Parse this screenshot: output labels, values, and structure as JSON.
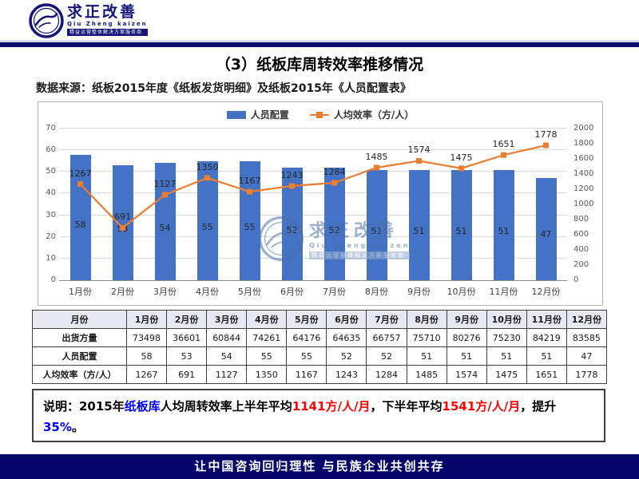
{
  "header": {
    "logo": {
      "brand": "求正改善",
      "brand_sub": "Qiu Zheng kaizen",
      "tagline": "精益运营整体解决方案服务商"
    }
  },
  "title": "（3）纸板库周转效率推移情况",
  "source_note": "数据来源：纸板2015年度《纸板发货明细》及纸板2015年《人员配置表》",
  "chart_data": {
    "type": "bar+line combo",
    "categories": [
      "1月份",
      "2月份",
      "3月份",
      "4月份",
      "5月份",
      "6月份",
      "7月份",
      "8月份",
      "9月份",
      "10月份",
      "11月份",
      "12月份"
    ],
    "series": [
      {
        "name": "人员配置",
        "type": "bar",
        "axis": "left",
        "color": "#4472C4",
        "values": [
          58,
          53,
          54,
          55,
          55,
          52,
          52,
          51,
          51,
          51,
          51,
          47
        ]
      },
      {
        "name": "人均效率（方/人）",
        "type": "line",
        "axis": "right",
        "color": "#ED7D31",
        "values": [
          1267,
          691,
          1127,
          1350,
          1167,
          1243,
          1284,
          1485,
          1574,
          1475,
          1651,
          1778
        ]
      }
    ],
    "left_axis": {
      "min": 0,
      "max": 70,
      "step": 10
    },
    "right_axis": {
      "min": 0,
      "max": 2000,
      "step": 200
    },
    "legend_position": "top",
    "grid": true,
    "data_labels": true
  },
  "watermark": {
    "brand": "求正改善",
    "brand_sub": "Qiu Zheng kaizen",
    "tagline": "精益运营整体解决方案服务商"
  },
  "table": {
    "header_row": [
      "月份",
      "1月份",
      "2月份",
      "3月份",
      "4月份",
      "5月份",
      "6月份",
      "7月份",
      "8月份",
      "9月份",
      "10月份",
      "11月份",
      "12月份"
    ],
    "rows": [
      {
        "label": "出货方量",
        "values": [
          "73498",
          "36601",
          "60844",
          "74261",
          "64176",
          "64635",
          "66757",
          "75710",
          "80276",
          "75230",
          "84219",
          "83585"
        ]
      },
      {
        "label": "人员配置",
        "values": [
          "58",
          "53",
          "54",
          "55",
          "55",
          "52",
          "52",
          "51",
          "51",
          "51",
          "51",
          "47"
        ]
      },
      {
        "label": "人均效率（方/人）",
        "values": [
          "1267",
          "691",
          "1127",
          "1350",
          "1167",
          "1243",
          "1284",
          "1485",
          "1574",
          "1475",
          "1651",
          "1778"
        ]
      }
    ]
  },
  "note": {
    "segments": [
      {
        "text": "说明：2015年",
        "color": "#000000"
      },
      {
        "text": "纸板库",
        "color": "#0000FF"
      },
      {
        "text": "人均周转效率上半年平均",
        "color": "#000000"
      },
      {
        "text": "1141方/人/月",
        "color": "#FF0000"
      },
      {
        "text": "，下半年平均",
        "color": "#000000"
      },
      {
        "text": "1541方/人/月",
        "color": "#FF0000"
      },
      {
        "text": "，提升",
        "color": "#000000"
      },
      {
        "text": "35%",
        "color": "#0000FF"
      },
      {
        "text": "。",
        "color": "#000000"
      }
    ]
  },
  "footer": {
    "slogan": "让中国咨询回归理性  与民族企业共创共存"
  },
  "colors": {
    "navy": "#0d0d6b",
    "bar_blue": "#4472C4",
    "line_orange": "#ED7D31",
    "table_header_bg": "#e8e8f2"
  }
}
